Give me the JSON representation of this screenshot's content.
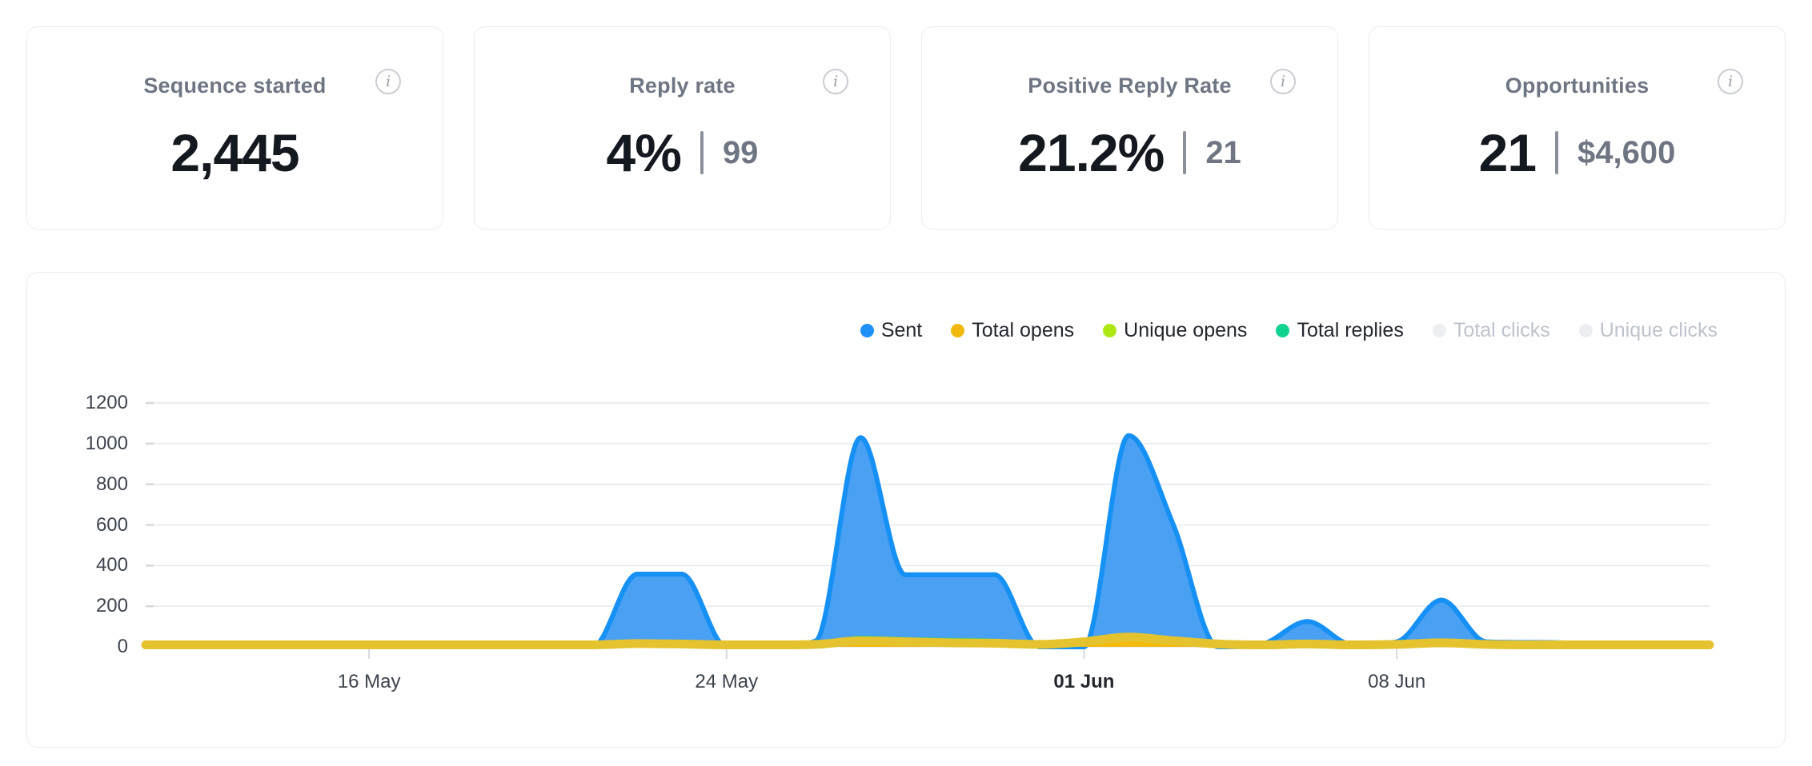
{
  "cards": [
    {
      "label": "Sequence started",
      "value": "2,445",
      "secondary": null
    },
    {
      "label": "Reply rate",
      "value": "4%",
      "secondary": "99"
    },
    {
      "label": "Positive Reply Rate",
      "value": "21.2%",
      "secondary": "21"
    },
    {
      "label": "Opportunities",
      "value": "21",
      "secondary": "$4,600"
    }
  ],
  "info_icon_glyph": "i",
  "colors": {
    "card_border": "#e9ebef",
    "grid_line": "#e7e9ed",
    "axis_tick": "#d5d8dd",
    "legend_disabled_dot": "#eceef1",
    "legend_disabled_text": "#bdc3cc"
  },
  "chart_data": {
    "type": "area",
    "title": "",
    "xlabel": "",
    "ylabel": "",
    "ylim": [
      0,
      1200
    ],
    "y_ticks": [
      0,
      200,
      400,
      600,
      800,
      1000,
      1200
    ],
    "grid": "horizontal",
    "legend_position": "top-right",
    "x": [
      "11 May",
      "12 May",
      "13 May",
      "14 May",
      "15 May",
      "16 May",
      "17 May",
      "18 May",
      "19 May",
      "20 May",
      "21 May",
      "22 May",
      "23 May",
      "24 May",
      "25 May",
      "26 May",
      "27 May",
      "28 May",
      "29 May",
      "30 May",
      "31 May",
      "01 Jun",
      "02 Jun",
      "03 Jun",
      "04 Jun",
      "05 Jun",
      "06 Jun",
      "07 Jun",
      "08 Jun",
      "09 Jun",
      "10 Jun",
      "11 Jun",
      "12 Jun",
      "13 Jun",
      "14 Jun",
      "15 Jun"
    ],
    "x_tick_indices": [
      5,
      13,
      21,
      28
    ],
    "x_tick_labels": [
      "16 May",
      "24 May",
      "01 Jun",
      "08 Jun"
    ],
    "x_tick_bold": "01 Jun",
    "series": [
      {
        "name": "Sent",
        "visible": true,
        "color": "#1590f5",
        "fill": "#4aa0f3",
        "legend_color": "#1e90f6",
        "values": [
          0,
          0,
          0,
          0,
          0,
          0,
          0,
          0,
          0,
          0,
          0,
          358,
          358,
          0,
          0,
          30,
          1030,
          355,
          355,
          355,
          0,
          0,
          1040,
          600,
          0,
          15,
          125,
          12,
          25,
          230,
          25,
          22,
          18,
          5,
          0,
          0
        ]
      },
      {
        "name": "Total opens",
        "visible": true,
        "color": "#e5c32e",
        "fill": "#f2bb0d",
        "legend_color": "#f0b90b",
        "values": [
          10,
          10,
          10,
          10,
          10,
          10,
          10,
          10,
          10,
          10,
          10,
          16,
          14,
          10,
          10,
          12,
          30,
          25,
          20,
          18,
          12,
          25,
          48,
          30,
          14,
          10,
          14,
          10,
          12,
          20,
          12,
          10,
          10,
          10,
          10,
          10
        ]
      },
      {
        "name": "Unique opens",
        "visible": true,
        "color": "#aee816",
        "fill": "#c0ee3e",
        "legend_color": "#ade812",
        "values": [
          6,
          6,
          6,
          6,
          6,
          6,
          6,
          6,
          6,
          6,
          6,
          10,
          9,
          6,
          6,
          8,
          18,
          15,
          12,
          11,
          8,
          15,
          28,
          18,
          9,
          6,
          9,
          6,
          8,
          12,
          8,
          6,
          6,
          6,
          6,
          6
        ]
      },
      {
        "name": "Total replies",
        "visible": true,
        "color": "#10c98b",
        "fill": "#19cd8f",
        "legend_color": "#0fd38f",
        "values": [
          0,
          0,
          0,
          0,
          0,
          0,
          0,
          0,
          0,
          0,
          0,
          20,
          15,
          0,
          0,
          10,
          45,
          38,
          35,
          30,
          5,
          12,
          55,
          40,
          8,
          0,
          8,
          0,
          5,
          25,
          12,
          8,
          5,
          0,
          0,
          0
        ]
      },
      {
        "name": "Total clicks",
        "visible": false,
        "color": "#eceef1",
        "legend_color": "#eceef1"
      },
      {
        "name": "Unique clicks",
        "visible": false,
        "color": "#eceef1",
        "legend_color": "#eceef1"
      }
    ]
  }
}
